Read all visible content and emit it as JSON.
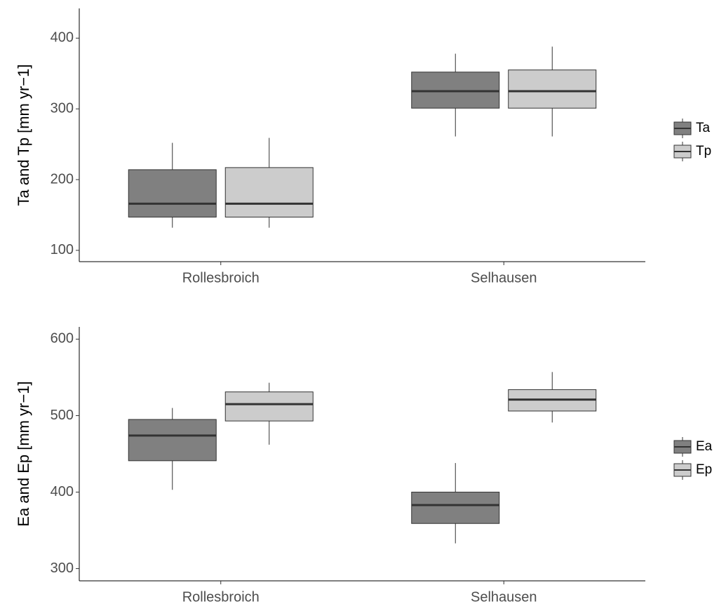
{
  "chart_data": [
    {
      "type": "box",
      "ylabel": "Ta and Tp [mm yr−1]",
      "categories": [
        "Rollesbroich",
        "Selhausen"
      ],
      "series": [
        {
          "name": "Ta",
          "color": "#808080",
          "values": [
            {
              "min": 132,
              "q1": 147,
              "median": 166,
              "q3": 214,
              "max": 252
            },
            {
              "min": 261,
              "q1": 301,
              "median": 325,
              "q3": 352,
              "max": 378
            }
          ]
        },
        {
          "name": "Tp",
          "color": "#cccccc",
          "values": [
            {
              "min": 132,
              "q1": 147,
              "median": 166,
              "q3": 217,
              "max": 259
            },
            {
              "min": 261,
              "q1": 301,
              "median": 325,
              "q3": 355,
              "max": 388
            }
          ]
        }
      ],
      "ylim": [
        84,
        442
      ],
      "yticks": [
        100,
        200,
        300,
        400
      ],
      "grid": false
    },
    {
      "type": "box",
      "ylabel": "Ea and Ep [mm yr−1]",
      "categories": [
        "Rollesbroich",
        "Selhausen"
      ],
      "series": [
        {
          "name": "Ea",
          "color": "#808080",
          "values": [
            {
              "min": 403,
              "q1": 441,
              "median": 474,
              "q3": 495,
              "max": 510
            },
            {
              "min": 333,
              "q1": 359,
              "median": 383,
              "q3": 400,
              "max": 438
            }
          ]
        },
        {
          "name": "Ep",
          "color": "#cccccc",
          "values": [
            {
              "min": 462,
              "q1": 493,
              "median": 515,
              "q3": 531,
              "max": 543
            },
            {
              "min": 491,
              "q1": 506,
              "median": 521,
              "q3": 534,
              "max": 557
            }
          ]
        }
      ],
      "ylim": [
        284,
        616
      ],
      "yticks": [
        300,
        400,
        500,
        600
      ],
      "grid": false
    }
  ]
}
